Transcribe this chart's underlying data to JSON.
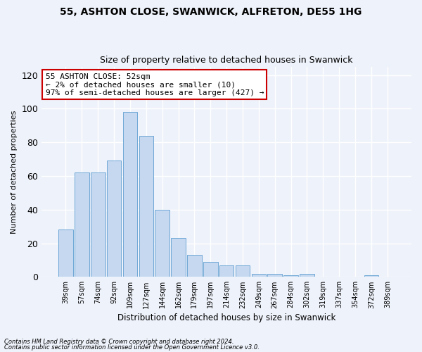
{
  "title1": "55, ASHTON CLOSE, SWANWICK, ALFRETON, DE55 1HG",
  "title2": "Size of property relative to detached houses in Swanwick",
  "xlabel": "Distribution of detached houses by size in Swanwick",
  "ylabel": "Number of detached properties",
  "bar_labels": [
    "39sqm",
    "57sqm",
    "74sqm",
    "92sqm",
    "109sqm",
    "127sqm",
    "144sqm",
    "162sqm",
    "179sqm",
    "197sqm",
    "214sqm",
    "232sqm",
    "249sqm",
    "267sqm",
    "284sqm",
    "302sqm",
    "319sqm",
    "337sqm",
    "354sqm",
    "372sqm",
    "389sqm"
  ],
  "bar_values": [
    28,
    62,
    62,
    69,
    98,
    84,
    40,
    23,
    13,
    9,
    7,
    7,
    2,
    2,
    1,
    2,
    0,
    0,
    0,
    1,
    0
  ],
  "bar_color": "#c5d8f0",
  "bar_edge_color": "#6fa8d6",
  "annotation_text": "55 ASHTON CLOSE: 52sqm\n← 2% of detached houses are smaller (10)\n97% of semi-detached houses are larger (427) →",
  "annotation_box_color": "#ffffff",
  "annotation_box_edge": "#cc0000",
  "footnote1": "Contains HM Land Registry data © Crown copyright and database right 2024.",
  "footnote2": "Contains public sector information licensed under the Open Government Licence v3.0.",
  "ylim": [
    0,
    125
  ],
  "background_color": "#eef2fa",
  "grid_color": "#ffffff"
}
